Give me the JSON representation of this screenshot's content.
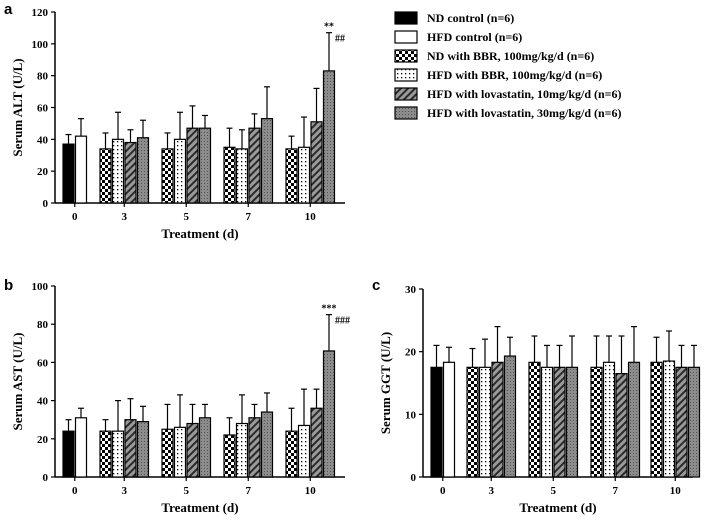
{
  "legend": [
    {
      "key": "nd_control",
      "label": "ND control (n=6)"
    },
    {
      "key": "hfd_control",
      "label": "HFD control (n=6)"
    },
    {
      "key": "nd_bbr",
      "label": "ND with BBR, 100mg/kg/d (n=6)"
    },
    {
      "key": "hfd_bbr",
      "label": "HFD with BBR, 100mg/kg/d (n=6)"
    },
    {
      "key": "hfd_lova10",
      "label": "HFD with lovastatin, 10mg/kg/d (n=6)"
    },
    {
      "key": "hfd_lova30",
      "label": "HFD with lovastatin, 30mg/kg/d (n=6)"
    }
  ],
  "chart_data": [
    {
      "panel": "a",
      "type": "bar",
      "title": "",
      "xlabel": "Treatment (d)",
      "ylabel": "Serum ALT  (U/L)",
      "ylim": [
        0,
        120
      ],
      "yticks": [
        0,
        20,
        40,
        60,
        80,
        100,
        120
      ],
      "categories": [
        "0",
        "3",
        "5",
        "7",
        "10"
      ],
      "series": [
        {
          "key": "nd_control",
          "values": [
            37,
            null,
            null,
            null,
            null
          ],
          "errors": [
            6,
            null,
            null,
            null,
            null
          ]
        },
        {
          "key": "hfd_control",
          "values": [
            42,
            null,
            null,
            null,
            null
          ],
          "errors": [
            11,
            null,
            null,
            null,
            null
          ]
        },
        {
          "key": "nd_bbr",
          "values": [
            null,
            34,
            34,
            35,
            34
          ],
          "errors": [
            null,
            10,
            10,
            12,
            8
          ]
        },
        {
          "key": "hfd_bbr",
          "values": [
            null,
            40,
            40,
            34,
            35
          ],
          "errors": [
            null,
            17,
            17,
            12,
            19
          ]
        },
        {
          "key": "hfd_lova10",
          "values": [
            null,
            38,
            47,
            47,
            51
          ],
          "errors": [
            null,
            8,
            14,
            9,
            21
          ]
        },
        {
          "key": "hfd_lova30",
          "values": [
            null,
            41,
            47,
            53,
            83
          ],
          "errors": [
            null,
            11,
            8,
            20,
            24
          ]
        }
      ],
      "annotations": [
        {
          "category": "10",
          "series": "hfd_lova30",
          "top": "**",
          "right": "##"
        }
      ]
    },
    {
      "panel": "b",
      "type": "bar",
      "title": "",
      "xlabel": "Treatment (d)",
      "ylabel": "Serum AST  (U/L)",
      "ylim": [
        0,
        100
      ],
      "yticks": [
        0,
        20,
        40,
        60,
        80,
        100
      ],
      "categories": [
        "0",
        "3",
        "5",
        "7",
        "10"
      ],
      "series": [
        {
          "key": "nd_control",
          "values": [
            24,
            null,
            null,
            null,
            null
          ],
          "errors": [
            6,
            null,
            null,
            null,
            null
          ]
        },
        {
          "key": "hfd_control",
          "values": [
            31,
            null,
            null,
            null,
            null
          ],
          "errors": [
            5,
            null,
            null,
            null,
            null
          ]
        },
        {
          "key": "nd_bbr",
          "values": [
            null,
            24,
            25,
            22,
            24
          ],
          "errors": [
            null,
            6,
            13,
            9,
            12
          ]
        },
        {
          "key": "hfd_bbr",
          "values": [
            null,
            24,
            26,
            28,
            27
          ],
          "errors": [
            null,
            16,
            17,
            15,
            19
          ]
        },
        {
          "key": "hfd_lova10",
          "values": [
            null,
            30,
            28,
            31,
            36
          ],
          "errors": [
            null,
            11,
            10,
            7,
            10
          ]
        },
        {
          "key": "hfd_lova30",
          "values": [
            null,
            29,
            31,
            34,
            66
          ],
          "errors": [
            null,
            8,
            7,
            10,
            19
          ]
        }
      ],
      "annotations": [
        {
          "category": "10",
          "series": "hfd_lova30",
          "top": "***",
          "right": "###"
        }
      ]
    },
    {
      "panel": "c",
      "type": "bar",
      "title": "",
      "xlabel": "Treatment (d)",
      "ylabel": "Serum GGT  (U/L)",
      "ylim": [
        0,
        30
      ],
      "yticks": [
        0,
        10,
        20,
        30
      ],
      "categories": [
        "0",
        "3",
        "5",
        "7",
        "10"
      ],
      "series": [
        {
          "key": "nd_control",
          "values": [
            17.5,
            null,
            null,
            null,
            null
          ],
          "errors": [
            3.5,
            null,
            null,
            null,
            null
          ]
        },
        {
          "key": "hfd_control",
          "values": [
            18.3,
            null,
            null,
            null,
            null
          ],
          "errors": [
            2.4,
            null,
            null,
            null,
            null
          ]
        },
        {
          "key": "nd_bbr",
          "values": [
            null,
            17.5,
            18.3,
            17.5,
            18.3
          ],
          "errors": [
            null,
            3.0,
            4.2,
            5.0,
            4.0
          ]
        },
        {
          "key": "hfd_bbr",
          "values": [
            null,
            17.5,
            17.5,
            18.3,
            18.5
          ],
          "errors": [
            null,
            4.5,
            3.5,
            4.2,
            4.8
          ]
        },
        {
          "key": "hfd_lova10",
          "values": [
            null,
            18.3,
            17.5,
            16.5,
            17.5
          ],
          "errors": [
            null,
            5.7,
            3.5,
            6.0,
            3.5
          ]
        },
        {
          "key": "hfd_lova30",
          "values": [
            null,
            19.3,
            17.5,
            18.3,
            17.5
          ],
          "errors": [
            null,
            3.0,
            5.0,
            5.7,
            3.5
          ]
        }
      ],
      "annotations": []
    }
  ]
}
